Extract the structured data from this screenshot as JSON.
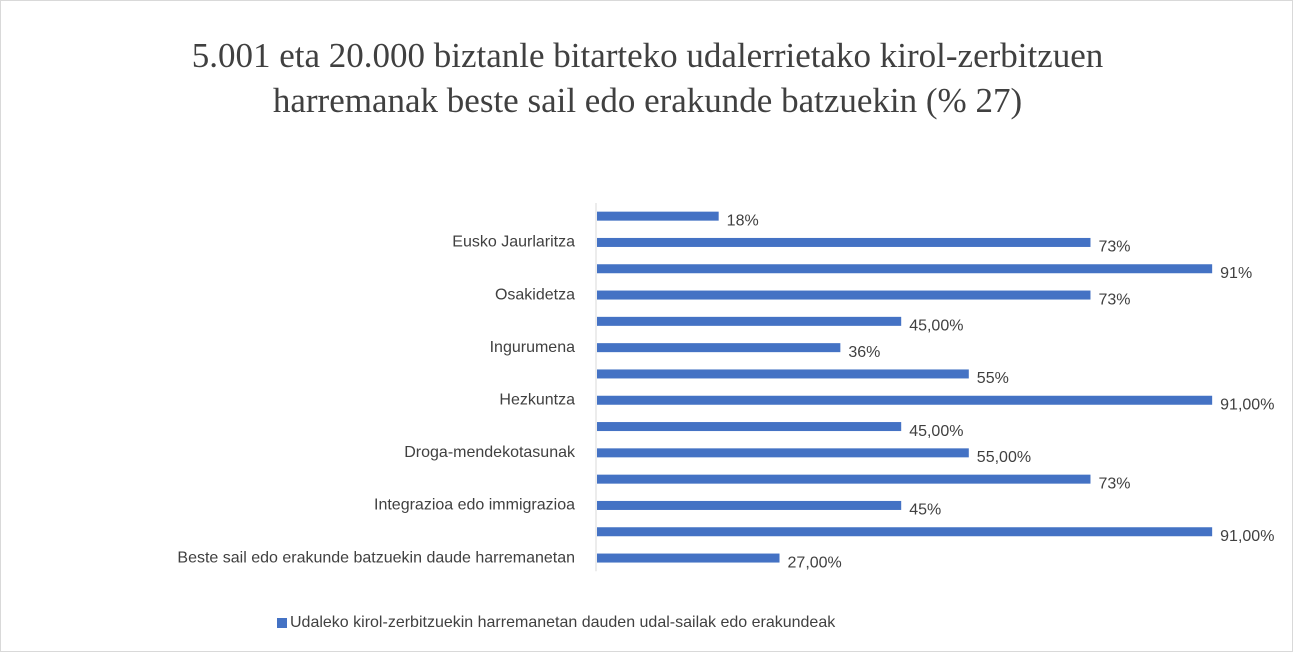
{
  "chart_data": {
    "type": "bar",
    "orientation": "horizontal",
    "title": "5.001 eta 20.000 biztanle bitarteko udalerrietako kirol-zerbitzuen harremanak beste sail edo erakunde batzuekin (% 27)",
    "categories": [
      null,
      "Eusko Jaurlaritza",
      null,
      "Osakidetza",
      null,
      "Ingurumena",
      null,
      "Hezkuntza",
      null,
      "Droga-mendekotasunak",
      null,
      "Integrazioa edo immigrazioa",
      null,
      "Beste sail edo erakunde batzuekin daude harremanetan"
    ],
    "series": [
      {
        "name": "Udaleko kirol-zerbitzuekin harremanetan dauden udal-sailak edo erakundeak",
        "color": "#4472c4",
        "values": [
          18,
          73,
          91,
          73,
          45,
          36,
          55,
          91,
          45,
          55,
          73,
          45,
          91,
          27
        ],
        "value_labels": [
          "18%",
          "73%",
          "91%",
          "73%",
          "45,00%",
          "36%",
          "55%",
          "91,00%",
          "45,00%",
          "55,00%",
          "73%",
          "45%",
          "91,00%",
          "27,00%"
        ]
      }
    ],
    "xlim": [
      0,
      100
    ],
    "legend": "bottom"
  }
}
